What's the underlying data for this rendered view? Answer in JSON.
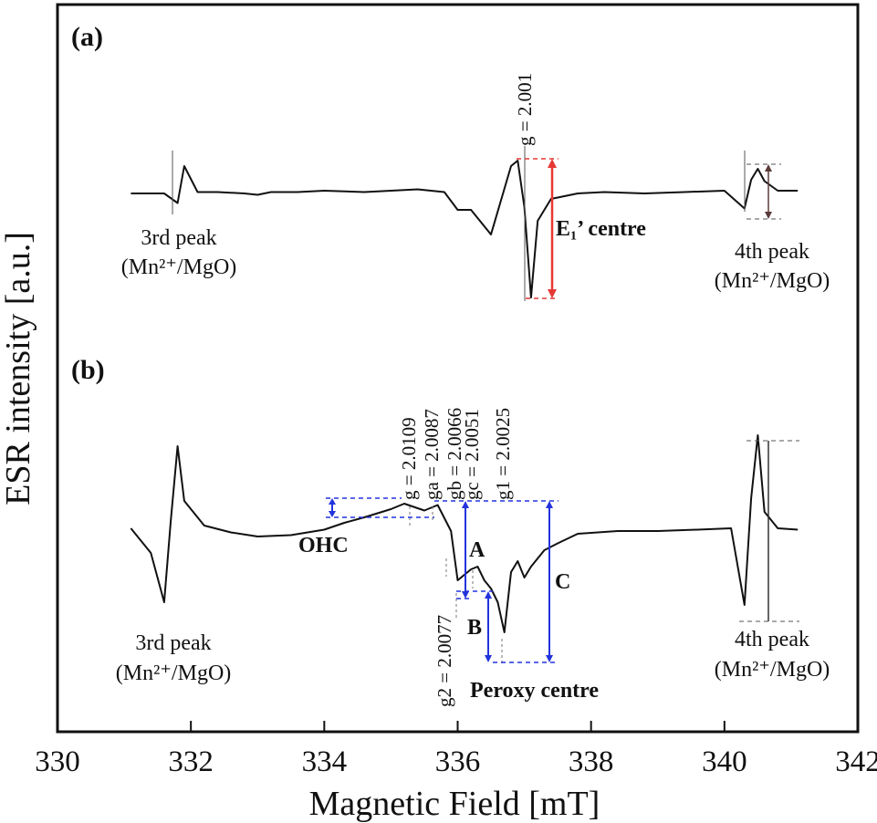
{
  "chart_data": {
    "type": "line",
    "xlabel": "Magnetic Field [mT]",
    "ylabel": "ESR intensity [a.u.]",
    "xlim": [
      330,
      342
    ],
    "xticks": [
      "330",
      "332",
      "334",
      "336",
      "338",
      "340",
      "342"
    ],
    "grid": false,
    "panels": [
      {
        "label": "(a)",
        "series": [
          {
            "x": [
              331.1,
              331.6,
              331.8,
              331.9,
              332.1,
              332.4,
              332.8,
              333.0,
              333.2,
              333.6,
              334.0,
              334.6,
              335.0,
              335.4,
              335.8,
              336.0,
              336.2,
              336.5,
              336.8,
              336.9,
              337.0,
              337.1,
              337.2,
              337.4,
              337.8,
              338.2,
              338.8,
              339.4,
              340.0,
              340.3,
              340.4,
              340.5,
              340.6,
              340.8,
              341.1
            ],
            "y": [
              0.0,
              0.0,
              -0.35,
              1.0,
              0.05,
              0.05,
              0.0,
              -0.05,
              0.05,
              0.05,
              0.1,
              0.05,
              0.1,
              0.15,
              0.05,
              -0.6,
              -0.6,
              -1.5,
              1.0,
              1.2,
              -0.5,
              -3.8,
              -1.0,
              -0.2,
              0.0,
              0.05,
              0.0,
              0.05,
              0.1,
              -0.55,
              0.5,
              0.9,
              0.45,
              0.1,
              0.1
            ]
          }
        ],
        "annotations": [
          {
            "text": "g = 2.001",
            "x": 337.0
          },
          {
            "text": "E₁’ centre",
            "x": 337.3
          },
          {
            "text": "3rd peak",
            "x": 331.7
          },
          {
            "text": "(Mn²⁺/MgO)",
            "x": 331.7
          },
          {
            "text": "4th peak",
            "x": 340.4
          },
          {
            "text": "(Mn²⁺/MgO)",
            "x": 340.4
          }
        ]
      },
      {
        "label": "(b)",
        "series": [
          {
            "x": [
              331.1,
              331.4,
              331.6,
              331.7,
              331.8,
              331.9,
              332.2,
              332.6,
              333.0,
              333.5,
              334.0,
              334.3,
              334.6,
              335.0,
              335.2,
              335.5,
              335.7,
              335.9,
              336.0,
              336.1,
              336.2,
              336.3,
              336.4,
              336.5,
              336.6,
              336.7,
              336.8,
              336.9,
              337.0,
              337.1,
              337.3,
              337.5,
              337.8,
              338.4,
              339.0,
              339.6,
              340.1,
              340.3,
              340.4,
              340.5,
              340.6,
              340.8,
              341.1
            ],
            "y": [
              0.2,
              -0.7,
              -2.5,
              0.5,
              3.2,
              1.2,
              0.3,
              0.05,
              -0.1,
              -0.05,
              0.15,
              0.4,
              0.6,
              0.9,
              1.1,
              0.85,
              1.05,
              0.1,
              -1.7,
              -1.5,
              -1.3,
              -1.2,
              -1.7,
              -2.0,
              -2.5,
              -3.6,
              -1.4,
              -1.0,
              -1.6,
              -1.2,
              -0.6,
              -0.35,
              0.0,
              0.1,
              0.1,
              0.15,
              0.2,
              -2.6,
              1.3,
              3.6,
              0.8,
              0.2,
              0.15
            ]
          }
        ],
        "annotations": [
          {
            "text": "g = 2.0109",
            "x": 335.3
          },
          {
            "text": "ga = 2.0087",
            "x": 335.7
          },
          {
            "text": "gb = 2.0066",
            "x": 336.0
          },
          {
            "text": "gc = 2.0051",
            "x": 336.2
          },
          {
            "text": "g1 = 2.0025",
            "x": 336.7
          },
          {
            "text": "g2 = 2.0077",
            "x": 336.0
          },
          {
            "text": "OHC",
            "x": 334.4
          },
          {
            "text": "A",
            "x": 336.1
          },
          {
            "text": "B",
            "x": 336.1
          },
          {
            "text": "C",
            "x": 337.5
          },
          {
            "text": "Peroxy centre",
            "x": 336.9
          },
          {
            "text": "3rd peak",
            "x": 331.7
          },
          {
            "text": "(Mn²⁺/MgO)",
            "x": 331.7
          },
          {
            "text": "4th peak",
            "x": 340.4
          },
          {
            "text": "(Mn²⁺/MgO)",
            "x": 340.4
          }
        ]
      }
    ]
  },
  "labels": {
    "panel_a": "(a)",
    "panel_b": "(b)",
    "a_g": "g = 2.001",
    "a_e1": "E₁’ centre",
    "third_peak": "3rd peak",
    "fourth_peak": "4th peak",
    "mn_mgo": "(Mn²⁺/MgO)",
    "ohc": "OHC",
    "peroxy": "Peroxy centre",
    "A": "A",
    "B": "B",
    "C": "C",
    "g_2_0109": "g = 2.0109",
    "ga": "ga = 2.0087",
    "gb": "gb = 2.0066",
    "gc": "gc = 2.0051",
    "g1": "g1 = 2.0025",
    "g2": "g2 = 2.0077"
  },
  "colors": {
    "trace": "#111111",
    "e1_marker": "#e53935",
    "peroxy_marker": "#2233dd",
    "guide": "#555555"
  }
}
